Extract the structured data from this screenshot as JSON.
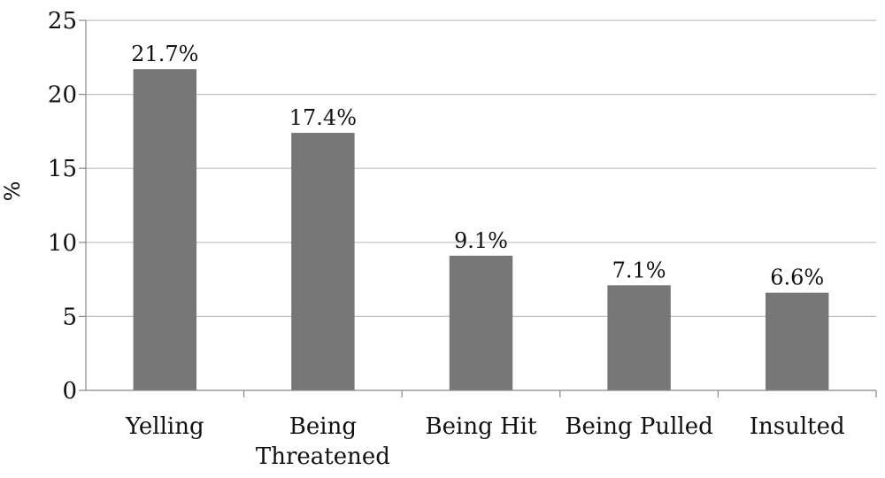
{
  "chart_data": {
    "type": "bar",
    "title": "",
    "xlabel": "",
    "ylabel": "%",
    "ylim": [
      0,
      25
    ],
    "yticks": [
      0,
      5,
      10,
      15,
      20,
      25
    ],
    "grid": true,
    "legend": "none",
    "bar_color": "#777777",
    "grid_color": "#bfbfbf",
    "categories": [
      {
        "label_lines": [
          "Yelling"
        ],
        "value": 21.7,
        "value_label": "21.7%"
      },
      {
        "label_lines": [
          "Being",
          "Threatened"
        ],
        "value": 17.4,
        "value_label": "17.4%"
      },
      {
        "label_lines": [
          "Being Hit"
        ],
        "value": 9.1,
        "value_label": "9.1%"
      },
      {
        "label_lines": [
          "Being Pulled"
        ],
        "value": 7.1,
        "value_label": "7.1%"
      },
      {
        "label_lines": [
          "Insulted"
        ],
        "value": 6.6,
        "value_label": "6.6%"
      }
    ]
  }
}
